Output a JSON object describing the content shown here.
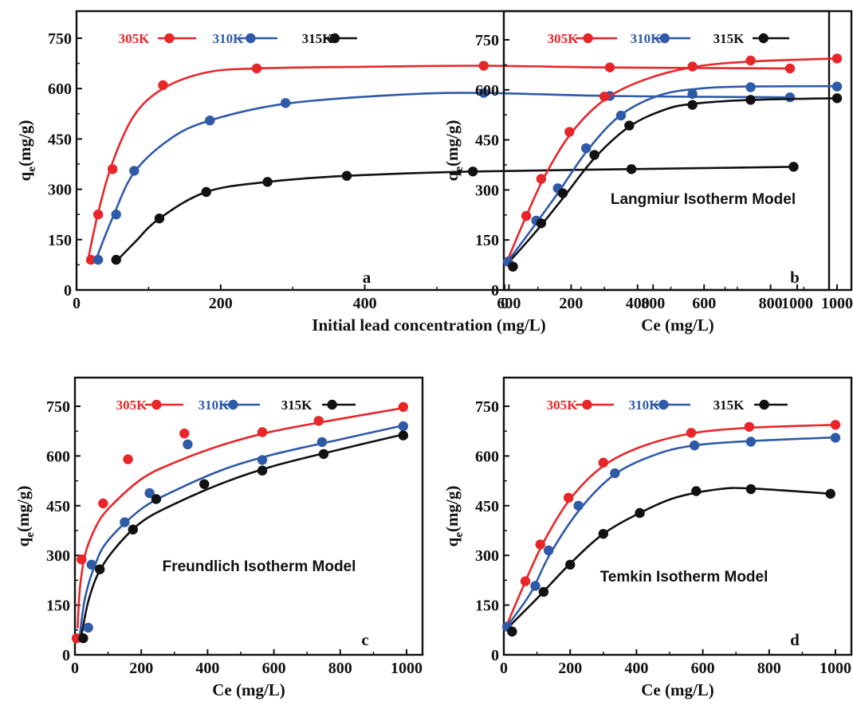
{
  "colors": {
    "305K": "#e8262a",
    "310K": "#2f5aa8",
    "315K": "#111111"
  },
  "chart_data": [
    {
      "type": "line",
      "panel_label": "a",
      "title": "",
      "xlabel": "Initial lead concentration (mg/L)",
      "ylabel_main": "q",
      "ylabel_sub": "e",
      "ylabel_rest": "(mg/g)",
      "xlim": [
        0,
        1000
      ],
      "ylim": [
        0,
        750
      ],
      "xticks": [
        0,
        200,
        400,
        600,
        800,
        1000
      ],
      "yticks": [
        0,
        150,
        300,
        450,
        600,
        750
      ],
      "legend": {
        "placement": "top",
        "entries": [
          "305K",
          "310K",
          "315K"
        ]
      },
      "series": [
        {
          "name": "305K",
          "points": [
            [
              20,
              90
            ],
            [
              30,
              225
            ],
            [
              50,
              360
            ],
            [
              120,
              610
            ],
            [
              250,
              660
            ],
            [
              565,
              668
            ],
            [
              740,
              663
            ],
            [
              990,
              660
            ]
          ],
          "curve": [
            [
              15,
              80
            ],
            [
              30,
              230
            ],
            [
              50,
              380
            ],
            [
              80,
              520
            ],
            [
              120,
              600
            ],
            [
              180,
              648
            ],
            [
              250,
              660
            ],
            [
              400,
              665
            ],
            [
              565,
              668
            ],
            [
              740,
              663
            ],
            [
              990,
              660
            ]
          ]
        },
        {
          "name": "310K",
          "points": [
            [
              30,
              90
            ],
            [
              55,
              225
            ],
            [
              80,
              355
            ],
            [
              185,
              505
            ],
            [
              290,
              557
            ],
            [
              565,
              587
            ],
            [
              740,
              578
            ],
            [
              990,
              574
            ]
          ],
          "curve": [
            [
              25,
              80
            ],
            [
              50,
              215
            ],
            [
              80,
              350
            ],
            [
              130,
              450
            ],
            [
              185,
              505
            ],
            [
              290,
              555
            ],
            [
              450,
              582
            ],
            [
              565,
              587
            ],
            [
              740,
              578
            ],
            [
              990,
              574
            ]
          ]
        },
        {
          "name": "315K",
          "points": [
            [
              55,
              90
            ],
            [
              115,
              213
            ],
            [
              180,
              292
            ],
            [
              265,
              322
            ],
            [
              375,
              340
            ],
            [
              550,
              353
            ],
            [
              770,
              360
            ],
            [
              995,
              367
            ]
          ],
          "curve": [
            [
              55,
              85
            ],
            [
              80,
              140
            ],
            [
              115,
              213
            ],
            [
              180,
              292
            ],
            [
              265,
              322
            ],
            [
              375,
              340
            ],
            [
              550,
              353
            ],
            [
              770,
              360
            ],
            [
              995,
              367
            ]
          ]
        }
      ]
    },
    {
      "type": "line",
      "panel_label": "b",
      "title": "",
      "annotation": "Langmiur Isotherm Model",
      "xlabel": "Ce (mg/L)",
      "ylabel_main": "q",
      "ylabel_sub": "e",
      "ylabel_rest": "(mg/g)",
      "xlim": [
        0,
        1000
      ],
      "ylim": [
        0,
        750
      ],
      "xticks": [
        0,
        200,
        400,
        600,
        800,
        1000
      ],
      "yticks": [
        0,
        150,
        300,
        450,
        600,
        750
      ],
      "legend": {
        "placement": "top",
        "entries": [
          "305K",
          "310K",
          "315K"
        ]
      },
      "series": [
        {
          "name": "305K",
          "points": [
            [
              10,
              85
            ],
            [
              65,
              222
            ],
            [
              110,
              333
            ],
            [
              195,
              474
            ],
            [
              300,
              580
            ],
            [
              565,
              670
            ],
            [
              740,
              688
            ],
            [
              1000,
              694
            ]
          ],
          "curve": [
            [
              5,
              80
            ],
            [
              60,
              210
            ],
            [
              120,
              340
            ],
            [
              200,
              470
            ],
            [
              300,
              570
            ],
            [
              420,
              630
            ],
            [
              565,
              668
            ],
            [
              740,
              685
            ],
            [
              1000,
              694
            ]
          ]
        },
        {
          "name": "310K",
          "points": [
            [
              10,
              85
            ],
            [
              95,
              208
            ],
            [
              160,
              305
            ],
            [
              245,
              425
            ],
            [
              350,
              523
            ],
            [
              565,
              588
            ],
            [
              740,
              608
            ],
            [
              1000,
              610
            ]
          ],
          "curve": [
            [
              5,
              80
            ],
            [
              80,
              180
            ],
            [
              160,
              290
            ],
            [
              250,
              420
            ],
            [
              350,
              525
            ],
            [
              470,
              585
            ],
            [
              600,
              605
            ],
            [
              740,
              610
            ],
            [
              1000,
              611
            ]
          ]
        },
        {
          "name": "315K",
          "points": [
            [
              25,
              70
            ],
            [
              110,
              200
            ],
            [
              175,
              290
            ],
            [
              270,
              405
            ],
            [
              375,
              493
            ],
            [
              565,
              555
            ],
            [
              740,
              570
            ],
            [
              1000,
              575
            ]
          ],
          "curve": [
            [
              5,
              75
            ],
            [
              90,
              170
            ],
            [
              175,
              275
            ],
            [
              270,
              395
            ],
            [
              375,
              490
            ],
            [
              480,
              540
            ],
            [
              565,
              558
            ],
            [
              740,
              570
            ],
            [
              1000,
              575
            ]
          ]
        }
      ]
    },
    {
      "type": "line",
      "panel_label": "c",
      "title": "",
      "annotation": "Freundlich Isotherm Model",
      "xlabel": "Ce (mg/L)",
      "ylabel_main": "q",
      "ylabel_sub": "e",
      "ylabel_rest": "(mg/g)",
      "xlim": [
        0,
        1000
      ],
      "ylim": [
        0,
        750
      ],
      "xticks": [
        0,
        200,
        400,
        600,
        800,
        1000
      ],
      "yticks": [
        0,
        150,
        300,
        450,
        600,
        750
      ],
      "legend": {
        "placement": "top",
        "entries": [
          "305K",
          "310K",
          "315K"
        ]
      },
      "series": [
        {
          "name": "305K",
          "points": [
            [
              5,
              50
            ],
            [
              20,
              288
            ],
            [
              85,
              457
            ],
            [
              160,
              590
            ],
            [
              330,
              668
            ],
            [
              565,
              672
            ],
            [
              735,
              706
            ],
            [
              990,
              748
            ]
          ],
          "curve": [
            [
              8,
              80
            ],
            [
              15,
              200
            ],
            [
              30,
              300
            ],
            [
              60,
              380
            ],
            [
              100,
              440
            ],
            [
              200,
              530
            ],
            [
              300,
              580
            ],
            [
              450,
              635
            ],
            [
              600,
              675
            ],
            [
              800,
              712
            ],
            [
              990,
              745
            ]
          ]
        },
        {
          "name": "310K",
          "points": [
            [
              40,
              82
            ],
            [
              50,
              272
            ],
            [
              150,
              400
            ],
            [
              225,
              488
            ],
            [
              340,
              635
            ],
            [
              565,
              588
            ],
            [
              745,
              642
            ],
            [
              990,
              690
            ]
          ],
          "curve": [
            [
              15,
              60
            ],
            [
              30,
              170
            ],
            [
              60,
              270
            ],
            [
              100,
              345
            ],
            [
              200,
              440
            ],
            [
              300,
              495
            ],
            [
              450,
              560
            ],
            [
              600,
              605
            ],
            [
              800,
              650
            ],
            [
              990,
              692
            ]
          ]
        },
        {
          "name": "315K",
          "points": [
            [
              25,
              50
            ],
            [
              75,
              258
            ],
            [
              175,
              378
            ],
            [
              245,
              470
            ],
            [
              390,
              515
            ],
            [
              565,
              556
            ],
            [
              750,
              606
            ],
            [
              990,
              662
            ]
          ],
          "curve": [
            [
              20,
              60
            ],
            [
              40,
              160
            ],
            [
              70,
              245
            ],
            [
              120,
              320
            ],
            [
              200,
              400
            ],
            [
              300,
              455
            ],
            [
              450,
              520
            ],
            [
              600,
              570
            ],
            [
              800,
              620
            ],
            [
              990,
              665
            ]
          ]
        }
      ]
    },
    {
      "type": "line",
      "panel_label": "d",
      "title": "",
      "annotation": "Temkin Isotherm Model",
      "xlabel": "Ce (mg/L)",
      "ylabel_main": "q",
      "ylabel_sub": "e",
      "ylabel_rest": "(mg/g)",
      "xlim": [
        0,
        1000
      ],
      "ylim": [
        0,
        750
      ],
      "xticks": [
        0,
        200,
        400,
        600,
        800,
        1000
      ],
      "yticks": [
        0,
        150,
        300,
        450,
        600,
        750
      ],
      "legend": {
        "placement": "top",
        "entries": [
          "305K",
          "310K",
          "315K"
        ]
      },
      "series": [
        {
          "name": "305K",
          "points": [
            [
              10,
              85
            ],
            [
              65,
              222
            ],
            [
              110,
              333
            ],
            [
              195,
              474
            ],
            [
              300,
              580
            ],
            [
              565,
              670
            ],
            [
              740,
              688
            ],
            [
              1000,
              694
            ]
          ],
          "curve": [
            [
              5,
              80
            ],
            [
              60,
              210
            ],
            [
              120,
              340
            ],
            [
              200,
              470
            ],
            [
              300,
              570
            ],
            [
              420,
              630
            ],
            [
              565,
              668
            ],
            [
              740,
              685
            ],
            [
              1000,
              694
            ]
          ]
        },
        {
          "name": "310K",
          "points": [
            [
              10,
              85
            ],
            [
              95,
              208
            ],
            [
              135,
              315
            ],
            [
              225,
              450
            ],
            [
              335,
              548
            ],
            [
              575,
              632
            ],
            [
              745,
              643
            ],
            [
              1000,
              655
            ]
          ],
          "curve": [
            [
              5,
              80
            ],
            [
              80,
              185
            ],
            [
              140,
              305
            ],
            [
              230,
              440
            ],
            [
              335,
              545
            ],
            [
              460,
              605
            ],
            [
              575,
              632
            ],
            [
              745,
              645
            ],
            [
              1000,
              656
            ]
          ]
        },
        {
          "name": "315K",
          "points": [
            [
              25,
              70
            ],
            [
              120,
              190
            ],
            [
              200,
              272
            ],
            [
              300,
              365
            ],
            [
              410,
              428
            ],
            [
              580,
              494
            ],
            [
              745,
              500
            ],
            [
              985,
              486
            ]
          ],
          "curve": [
            [
              5,
              75
            ],
            [
              100,
              170
            ],
            [
              200,
              275
            ],
            [
              300,
              365
            ],
            [
              410,
              428
            ],
            [
              520,
              475
            ],
            [
              650,
              500
            ],
            [
              745,
              502
            ],
            [
              985,
              486
            ]
          ]
        }
      ]
    }
  ]
}
